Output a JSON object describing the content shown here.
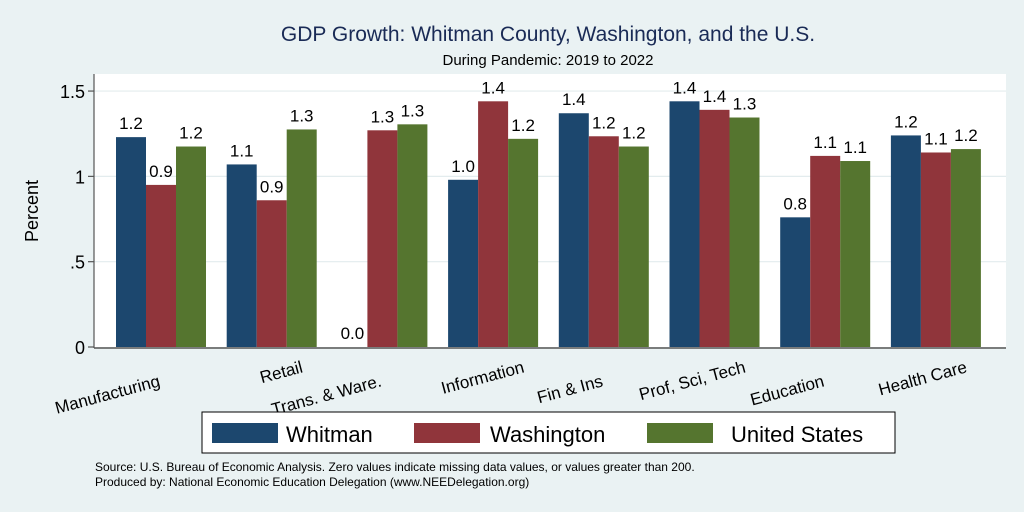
{
  "chart_data": {
    "type": "bar",
    "title": "GDP Growth: Whitman County, Washington, and the U.S.",
    "subtitle": "During Pandemic: 2019 to 2022",
    "xlabel": "",
    "ylabel": "Percent",
    "ylim": [
      0,
      1.6
    ],
    "yticks": [
      0,
      0.5,
      1,
      1.5
    ],
    "ytick_labels": [
      "0",
      ".5",
      "1",
      "1.5"
    ],
    "grid": true,
    "legend_position": "bottom",
    "categories": [
      "Manufacturing",
      "Retail",
      "Trans. & Ware.",
      "Information",
      "Fin & Ins",
      "Prof, Sci, Tech",
      "Education",
      "Health Care"
    ],
    "series": [
      {
        "name": "Whitman",
        "color": "#1c476e",
        "values": [
          1.23,
          1.07,
          0.0,
          0.98,
          1.37,
          1.44,
          0.76,
          1.24
        ],
        "labels": [
          "1.2",
          "1.1",
          "0.0",
          "1.0",
          "1.4",
          "1.4",
          "0.8",
          "1.2"
        ]
      },
      {
        "name": "Washington",
        "color": "#90353b",
        "values": [
          0.95,
          0.86,
          1.27,
          1.44,
          1.235,
          1.39,
          1.12,
          1.14
        ],
        "labels": [
          "0.9",
          "0.9",
          "1.3",
          "1.4",
          "1.2",
          "1.4",
          "1.1",
          "1.1"
        ]
      },
      {
        "name": "United States",
        "color": "#55752f",
        "values": [
          1.175,
          1.275,
          1.305,
          1.22,
          1.175,
          1.345,
          1.09,
          1.16
        ],
        "labels": [
          "1.2",
          "1.3",
          "1.3",
          "1.2",
          "1.2",
          "1.3",
          "1.1",
          "1.2"
        ]
      }
    ],
    "footnotes": [
      "Source: U.S. Bureau of Economic Analysis. Zero values indicate missing data values, or values greater than 200.",
      "Produced by: National Economic Education Delegation (www.NEEDelegation.org)"
    ]
  }
}
